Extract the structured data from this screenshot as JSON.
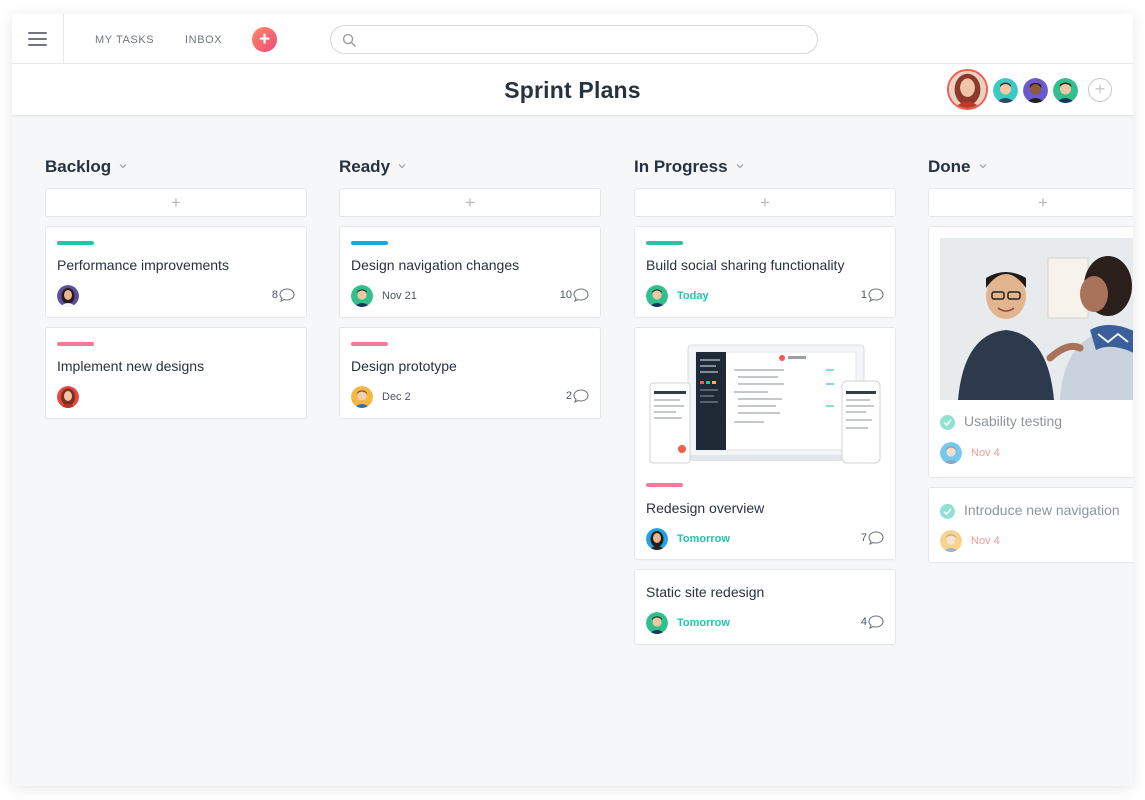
{
  "topbar": {
    "my_tasks": "MY TASKS",
    "inbox": "INBOX",
    "add_label": "+",
    "search_placeholder": "",
    "search_value": ""
  },
  "project": {
    "title": "Sprint Plans",
    "add_member_label": "+"
  },
  "colors": {
    "accent": "#f0487a",
    "teal": "#25c4a6",
    "blue": "#1aa6e8",
    "pink": "#f27b98",
    "background": "#f6f7f9"
  },
  "columns": [
    {
      "title": "Backlog",
      "add_label": "+",
      "cards": [
        {
          "title": "Performance improvements",
          "tag_color": "#25c4a6",
          "due": "",
          "comments": "8"
        },
        {
          "title": "Implement new designs",
          "tag_color": "#f27b98",
          "due": "",
          "comments": ""
        }
      ]
    },
    {
      "title": "Ready",
      "add_label": "+",
      "cards": [
        {
          "title": "Design navigation changes",
          "tag_color": "#1aa6e8",
          "due": "Nov 21",
          "comments": "10"
        },
        {
          "title": "Design prototype",
          "tag_color": "#f27b98",
          "due": "Dec 2",
          "comments": "2"
        }
      ]
    },
    {
      "title": "In Progress",
      "add_label": "+",
      "cards": [
        {
          "title": "Build social sharing functionality",
          "tag_color": "#25c4a6",
          "due": "Today",
          "comments": "1"
        },
        {
          "title": "Redesign overview",
          "tag_color": "#f27b98",
          "due": "Tomorrow",
          "comments": "7"
        },
        {
          "title": "Static site redesign",
          "tag_color": "",
          "due": "Tomorrow",
          "comments": "4"
        }
      ]
    },
    {
      "title": "Done",
      "add_label": "+",
      "cards": [
        {
          "title": "Usability testing",
          "due": "Nov 4",
          "completed": true
        },
        {
          "title": "Introduce new navigation",
          "due": "Nov 4",
          "completed": true
        }
      ]
    }
  ]
}
